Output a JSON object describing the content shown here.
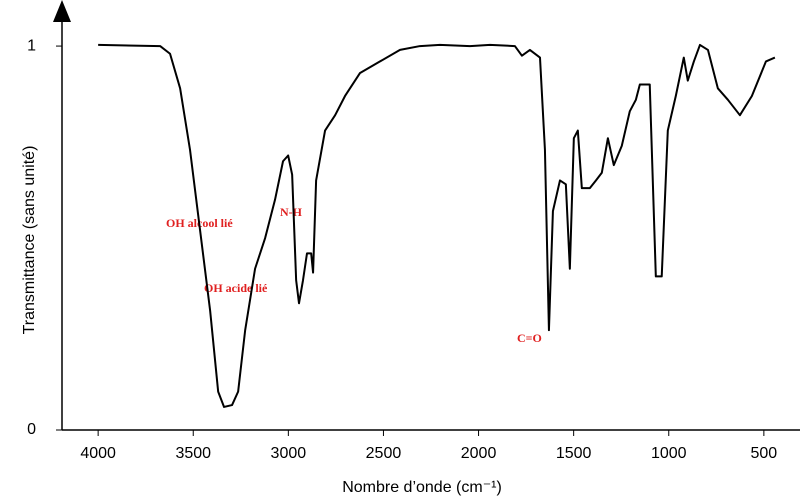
{
  "chart_data": {
    "type": "line",
    "x_label": "Nombre d’onde (cm⁻¹)",
    "y_label": "Transmittance (sans unité)",
    "annotations": [
      "OH alcool lié",
      "N-H",
      "OH acide lié",
      "C=O"
    ],
    "xlim": [
      4190,
      310
    ],
    "ylim": [
      0,
      1.12
    ],
    "xticks": [
      4000,
      3500,
      3000,
      2500,
      2000,
      1500,
      1000,
      500
    ],
    "yticks": [
      0,
      1
    ],
    "series": [
      {
        "color": "#000000",
        "x": [
          4000,
          3674,
          3622,
          3569,
          3517,
          3464,
          3411,
          3369,
          3338,
          3296,
          3264,
          3227,
          3175,
          3122,
          3070,
          3028,
          3001,
          2980,
          2959,
          2944,
          2923,
          2902,
          2880,
          2870,
          2854,
          2807,
          2754,
          2702,
          2623,
          2518,
          2413,
          2308,
          2203,
          2045,
          1940,
          1809,
          1772,
          1730,
          1677,
          1651,
          1630,
          1609,
          1572,
          1541,
          1520,
          1499,
          1478,
          1457,
          1415,
          1383,
          1352,
          1320,
          1289,
          1247,
          1205,
          1173,
          1152,
          1100,
          1068,
          1037,
          1005,
          963,
          921,
          900,
          868,
          836,
          794,
          742,
          689,
          626,
          563,
          489,
          442
        ],
        "values": [
          1.003,
          1.0,
          0.98,
          0.89,
          0.73,
          0.52,
          0.31,
          0.1,
          0.06,
          0.065,
          0.1,
          0.26,
          0.42,
          0.5,
          0.6,
          0.7,
          0.715,
          0.665,
          0.39,
          0.33,
          0.39,
          0.46,
          0.46,
          0.41,
          0.65,
          0.78,
          0.82,
          0.87,
          0.93,
          0.96,
          0.99,
          1.0,
          1.003,
          1.0,
          1.003,
          1.0,
          0.975,
          0.99,
          0.97,
          0.73,
          0.26,
          0.57,
          0.65,
          0.64,
          0.42,
          0.76,
          0.78,
          0.63,
          0.63,
          0.65,
          0.67,
          0.76,
          0.69,
          0.74,
          0.83,
          0.86,
          0.9,
          0.9,
          0.4,
          0.4,
          0.78,
          0.87,
          0.97,
          0.91,
          0.96,
          1.003,
          0.99,
          0.89,
          0.86,
          0.82,
          0.87,
          0.96,
          0.97
        ]
      }
    ]
  }
}
